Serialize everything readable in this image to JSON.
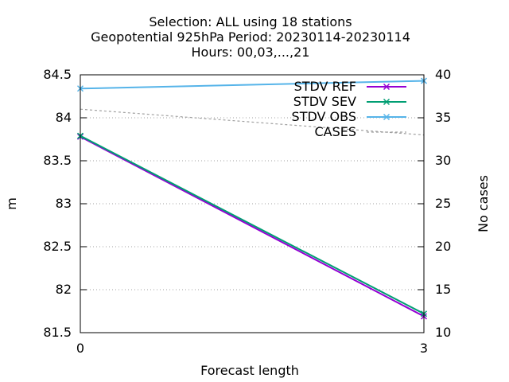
{
  "chart_data": {
    "type": "line",
    "title_lines": [
      "Selection: ALL using    18 stations",
      "Geopotential 925hPa   Period: 20230114-20230114",
      "Hours:  00,03,...,21"
    ],
    "xlabel": "Forecast length",
    "ylabel": "m",
    "y2label": "No cases",
    "x": [
      0,
      3
    ],
    "xticks": [
      "0",
      "3"
    ],
    "xlim": [
      0,
      3
    ],
    "ylim": [
      81.5,
      84.5
    ],
    "yticks": [
      "81.5",
      "82",
      "82.5",
      "83",
      "83.5",
      "84",
      "84.5"
    ],
    "y2lim": [
      10,
      40
    ],
    "y2ticks": [
      "10",
      "15",
      "20",
      "25",
      "30",
      "35",
      "40"
    ],
    "grid": true,
    "legend_position": "top-right",
    "series": [
      {
        "name": "STDV REF",
        "axis": "y",
        "color": "#9400d3",
        "marker": "x",
        "dash": "",
        "values": [
          83.78,
          81.69
        ]
      },
      {
        "name": "STDV SEV",
        "axis": "y",
        "color": "#009e73",
        "marker": "x",
        "dash": "",
        "values": [
          83.79,
          81.72
        ]
      },
      {
        "name": "STDV OBS",
        "axis": "y",
        "color": "#56b4e9",
        "marker": "x",
        "dash": "",
        "values": [
          84.34,
          84.43
        ]
      },
      {
        "name": "CASES",
        "axis": "y2",
        "color": "#a0a0a0",
        "marker": "",
        "dash": "3,3",
        "values": [
          36,
          33
        ]
      }
    ]
  }
}
